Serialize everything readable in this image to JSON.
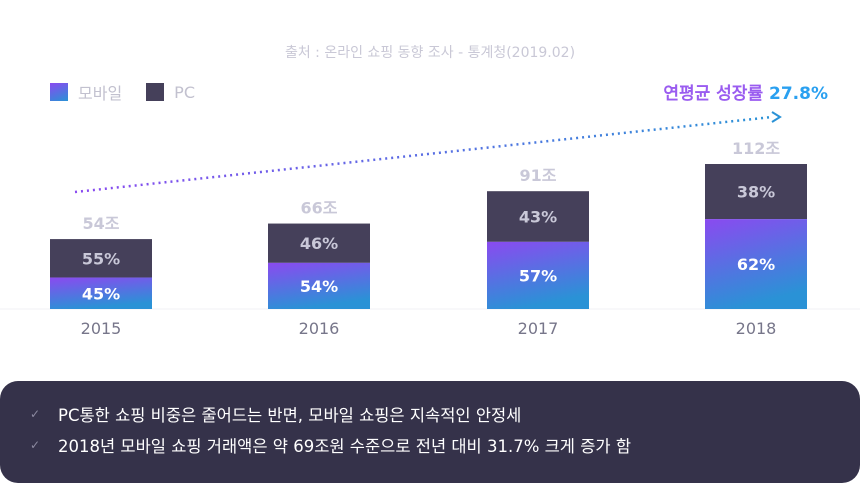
{
  "source": "출처 : 온라인 쇼핑 동향 조사 - 통계청(2019.02)",
  "legend": {
    "mobile": "모바일",
    "pc": "PC"
  },
  "cagr": {
    "label": "연평균 성장률",
    "value": "27.8%"
  },
  "colors": {
    "mobile_top": "#8a4af0",
    "mobile_bottom": "#2a92d6",
    "pc": "#45405a"
  },
  "chart_data": {
    "type": "bar",
    "stacked": true,
    "categories": [
      "2015",
      "2016",
      "2017",
      "2018"
    ],
    "totals": [
      54,
      66,
      91,
      112
    ],
    "total_labels": [
      "54조",
      "66조",
      "91조",
      "112조"
    ],
    "series": [
      {
        "name": "모바일",
        "percent": [
          45,
          54,
          57,
          62
        ],
        "labels": [
          "45%",
          "54%",
          "57%",
          "62%"
        ]
      },
      {
        "name": "PC",
        "percent": [
          55,
          46,
          43,
          38
        ],
        "labels": [
          "55%",
          "46%",
          "43%",
          "38%"
        ]
      }
    ],
    "ylim": [
      0,
      112
    ],
    "trend": "dotted arrow rising"
  },
  "notes": [
    "PC통한 쇼핑 비중은 줄어드는 반면, 모바일 쇼핑은 지속적인 안정세",
    "2018년 모바일 쇼핑 거래액은 약 69조원 수준으로 전년 대비 31.7% 크게 증가 함"
  ]
}
